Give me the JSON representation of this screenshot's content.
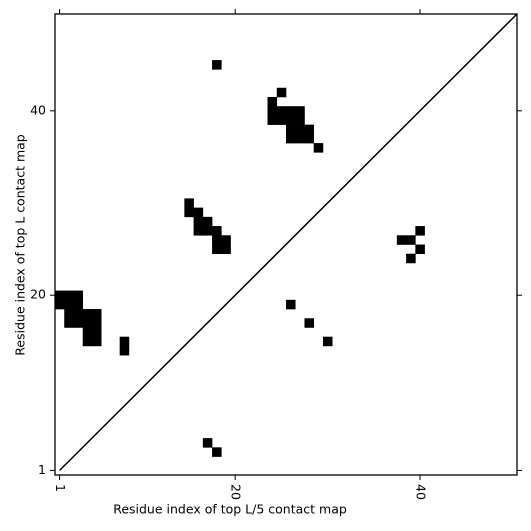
{
  "chart_data": {
    "type": "contact_map",
    "x_label": "Residue index of top L/5 contact map",
    "y_label": "Residue index of top L contact map",
    "xlim": [
      0.5,
      50.5
    ],
    "ylim": [
      0.5,
      50.5
    ],
    "xticks": [
      1,
      20,
      40
    ],
    "yticks": [
      1,
      20,
      40
    ],
    "color": "#000000",
    "points": {
      "x": [
        18,
        25,
        24,
        24,
        25,
        26,
        27,
        24,
        25,
        26,
        27,
        26,
        27,
        28,
        26,
        27,
        28,
        29,
        15,
        15,
        16,
        16,
        17,
        16,
        17,
        18,
        18,
        19,
        18,
        19,
        1,
        2,
        3,
        1,
        2,
        3,
        2,
        3,
        4,
        5,
        2,
        3,
        4,
        5,
        4,
        5,
        4,
        5,
        8,
        8,
        17,
        18,
        26,
        28,
        30,
        40,
        38,
        39,
        40,
        39
      ],
      "y": [
        45,
        42,
        41,
        40,
        40,
        40,
        40,
        39,
        39,
        39,
        39,
        38,
        38,
        38,
        37,
        37,
        37,
        36,
        30,
        29,
        29,
        28,
        28,
        27,
        27,
        27,
        26,
        26,
        25,
        25,
        20,
        20,
        20,
        19,
        19,
        19,
        18,
        18,
        18,
        18,
        17,
        17,
        17,
        17,
        16,
        16,
        15,
        15,
        15,
        14,
        4,
        3,
        19,
        17,
        15,
        27,
        26,
        26,
        25,
        24
      ]
    },
    "diagonal": {
      "x": [
        1,
        50.5
      ],
      "y": [
        1,
        50.5
      ]
    }
  }
}
